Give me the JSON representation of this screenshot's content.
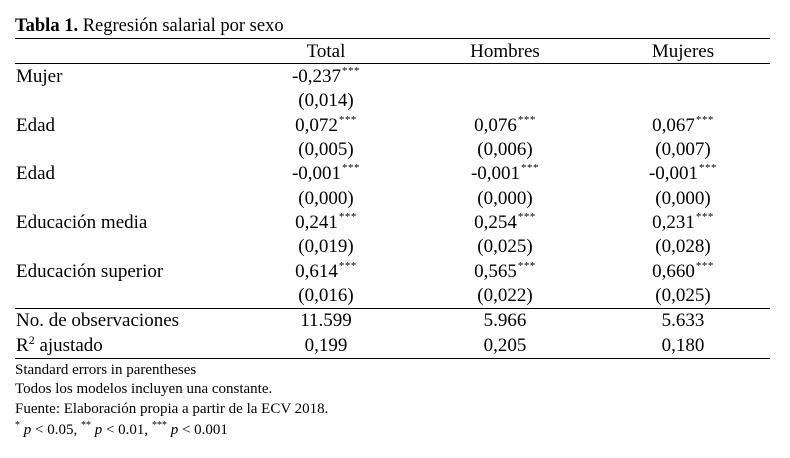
{
  "table": {
    "title_bold": "Tabla 1.",
    "title_rest": " Regresión salarial por sexo",
    "columns": [
      "Total",
      "Hombres",
      "Mujeres"
    ],
    "rows": [
      {
        "label": "Mujer",
        "coef": [
          "-0,237",
          "",
          ""
        ],
        "stars": [
          "***",
          "",
          ""
        ],
        "se": [
          "(0,014)",
          "",
          ""
        ]
      },
      {
        "label": "Edad",
        "coef": [
          "0,072",
          "0,076",
          "0,067"
        ],
        "stars": [
          "***",
          "***",
          "***"
        ],
        "se": [
          "(0,005)",
          "(0,006)",
          "(0,007)"
        ]
      },
      {
        "label": "Edad",
        "coef": [
          "-0,001",
          "-0,001",
          "-0,001"
        ],
        "stars": [
          "***",
          "***",
          "***"
        ],
        "se": [
          "(0,000)",
          "(0,000)",
          "(0,000)"
        ]
      },
      {
        "label": "Educación media",
        "coef": [
          "0,241",
          "0,254",
          "0,231"
        ],
        "stars": [
          "***",
          "***",
          "***"
        ],
        "se": [
          "(0,019)",
          "(0,025)",
          "(0,028)"
        ]
      },
      {
        "label": "Educación superior",
        "coef": [
          "0,614",
          "0,565",
          "0,660"
        ],
        "stars": [
          "***",
          "***",
          "***"
        ],
        "se": [
          "(0,016)",
          "(0,022)",
          "(0,025)"
        ]
      }
    ],
    "stats": [
      {
        "label": "No. de observaciones",
        "values": [
          "11.599",
          "5.966",
          "5.633"
        ]
      },
      {
        "label_main": "R",
        "label_sup": "2",
        "label_rest": " ajustado",
        "values": [
          "0,199",
          "0,205",
          "0,180"
        ]
      }
    ],
    "notes": {
      "line1": "Standard errors in parentheses",
      "line2": "Todos los modelos incluyen una constante.",
      "line3": "Fuente: Elaboración propia a partir de la ECV 2018.",
      "sig": [
        {
          "stars": "*",
          "p": "p",
          "rest": " < 0.05, "
        },
        {
          "stars": "**",
          "p": "p",
          "rest": " < 0.01, "
        },
        {
          "stars": "***",
          "p": "p",
          "rest": " < 0.001"
        }
      ]
    }
  }
}
